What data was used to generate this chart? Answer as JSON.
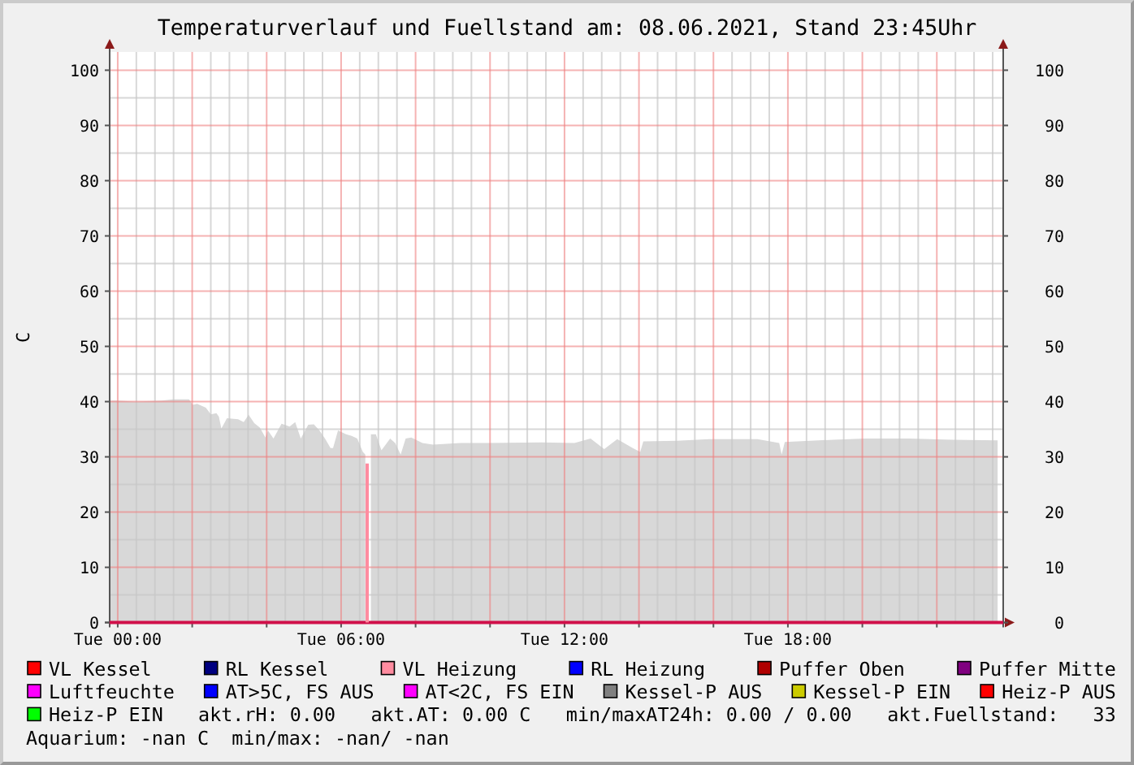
{
  "chart_data": {
    "type": "area",
    "title": "Temperaturverlauf und Fuellstand am: 08.06.2021, Stand 23:45Uhr",
    "ylabel": "C",
    "xlim": [
      "2021-06-07T23:47",
      "2021-06-08T23:47"
    ],
    "xticks": [
      {
        "value": "2021-06-08T00:00",
        "label": "Tue 00:00"
      },
      {
        "value": "2021-06-08T02:00",
        "label": null
      },
      {
        "value": "2021-06-08T04:00",
        "label": null
      },
      {
        "value": "2021-06-08T06:00",
        "label": "Tue 06:00"
      },
      {
        "value": "2021-06-08T08:00",
        "label": null
      },
      {
        "value": "2021-06-08T10:00",
        "label": null
      },
      {
        "value": "2021-06-08T12:00",
        "label": "Tue 12:00"
      },
      {
        "value": "2021-06-08T14:00",
        "label": null
      },
      {
        "value": "2021-06-08T16:00",
        "label": null
      },
      {
        "value": "2021-06-08T18:00",
        "label": "Tue 18:00"
      },
      {
        "value": "2021-06-08T20:00",
        "label": null
      },
      {
        "value": "2021-06-08T22:00",
        "label": null
      }
    ],
    "ylim": [
      0,
      103.3
    ],
    "yticks": [
      0,
      10,
      20,
      30,
      40,
      50,
      60,
      70,
      80,
      90,
      100
    ],
    "y2lim": [
      0,
      103.3
    ],
    "y2ticks": [
      0,
      10,
      20,
      30,
      40,
      50,
      60,
      70,
      80,
      90,
      100
    ],
    "grid": true,
    "legend": "bottom",
    "series": [
      {
        "color": "#d8d8d8",
        "x": [
          "2021-06-07T23:47",
          "2021-06-08T00:00",
          "2021-06-08T00:28",
          "2021-06-08T01:11",
          "2021-06-08T01:29",
          "2021-06-08T01:55",
          "2021-06-08T02:01",
          "2021-06-08T02:08",
          "2021-06-08T02:22",
          "2021-06-08T02:30",
          "2021-06-08T02:39",
          "2021-06-08T02:43",
          "2021-06-08T02:47",
          "2021-06-08T02:56",
          "2021-06-08T03:14",
          "2021-06-08T03:23",
          "2021-06-08T03:31",
          "2021-06-08T03:40",
          "2021-06-08T03:49",
          "2021-06-08T03:58",
          "2021-06-08T04:02",
          "2021-06-08T04:11",
          "2021-06-08T04:24",
          "2021-06-08T04:37",
          "2021-06-08T04:46",
          "2021-06-08T04:55",
          "2021-06-08T05:07",
          "2021-06-08T05:16",
          "2021-06-08T05:25",
          "2021-06-08T05:34",
          "2021-06-08T05:43",
          "2021-06-08T05:47",
          "2021-06-08T05:55",
          "2021-06-08T06:08",
          "2021-06-08T06:17",
          "2021-06-08T06:26",
          "2021-06-08T06:35",
          "2021-06-08T06:39",
          "2021-06-08T06:42",
          "2021-06-08T06:48",
          "2021-06-08T06:56",
          "2021-06-08T07:05",
          "2021-06-08T07:19",
          "2021-06-08T07:27",
          "2021-06-08T07:36",
          "2021-06-08T07:44",
          "2021-06-08T07:53",
          "2021-06-08T08:11",
          "2021-06-08T08:28",
          "2021-06-08T09:12",
          "2021-06-08T09:56",
          "2021-06-08T11:23",
          "2021-06-08T12:16",
          "2021-06-08T12:42",
          "2021-06-08T13:04",
          "2021-06-08T13:25",
          "2021-06-08T13:50",
          "2021-06-08T14:02",
          "2021-06-08T14:07",
          "2021-06-08T15:01",
          "2021-06-08T15:53",
          "2021-06-08T17:11",
          "2021-06-08T17:46",
          "2021-06-08T17:50",
          "2021-06-08T17:55",
          "2021-06-08T19:13",
          "2021-06-08T20:05",
          "2021-06-08T21:15",
          "2021-06-08T22:25",
          "2021-06-08T23:38"
        ],
        "values": [
          40.2,
          40.2,
          40,
          40.2,
          40.4,
          40.4,
          39.4,
          39.6,
          38.9,
          37.7,
          37.9,
          37.3,
          35.1,
          37,
          36.8,
          36.3,
          37.6,
          36.1,
          35.3,
          33.5,
          34.8,
          33.3,
          36,
          35.5,
          36.3,
          33.3,
          35.8,
          35.9,
          34.8,
          33.3,
          31.6,
          31.6,
          34.8,
          34.1,
          33.8,
          33.3,
          30.9,
          30.4,
          null,
          34.1,
          34.1,
          31.2,
          33.3,
          32.5,
          30.4,
          33.3,
          33.5,
          32.5,
          32.2,
          32.5,
          32.5,
          32.6,
          32.5,
          33.3,
          31.4,
          33.2,
          31.6,
          30.9,
          32.8,
          32.9,
          33.2,
          33.2,
          32.5,
          30.4,
          32.7,
          33.1,
          33.3,
          33.3,
          33.1,
          33.0
        ]
      },
      {
        "type": "line",
        "color": "#d0104a",
        "x": [
          "2021-06-07T23:47",
          "2021-06-08T23:47"
        ],
        "values": [
          0,
          0
        ]
      },
      {
        "type": "line",
        "name": "VL Kessel",
        "color": "#ff0000"
      },
      {
        "type": "line",
        "name": "RL Kessel",
        "color": "#000080"
      },
      {
        "type": "line",
        "name": "VL Heizung",
        "color": "#ff8ca0",
        "x": [
          "2021-06-08T06:42",
          "2021-06-08T06:42"
        ],
        "values": [
          0,
          28.8
        ]
      },
      {
        "type": "line",
        "name": "RL Heizung",
        "color": "#0000ff"
      },
      {
        "type": "line",
        "name": "Puffer Oben",
        "color": "#b00000"
      },
      {
        "type": "line",
        "name": "Puffer Mitte",
        "color": "#800080"
      },
      {
        "type": "line",
        "name": "Luftfeuchte",
        "color": "#ff00ff"
      },
      {
        "type": "line",
        "name": "AT>5C, FS AUS",
        "color": "#0000ff"
      },
      {
        "type": "line",
        "name": "AT<2C, FS EIN",
        "color": "#ff00ff"
      },
      {
        "type": "line",
        "name": "Kessel-P AUS",
        "color": "#808080"
      },
      {
        "type": "line",
        "name": "Kessel-P EIN",
        "color": "#cccc00"
      },
      {
        "type": "line",
        "name": "Heiz-P AUS",
        "color": "#ff0000"
      },
      {
        "type": "line",
        "name": "Heiz-P EIN",
        "color": "#00ff00"
      }
    ],
    "annotations": [
      "akt.rH: 0.00",
      "akt.AT: 0.00 C",
      "min/maxAT24h: 0.00 / 0.00",
      "akt.Fuellstand:   33",
      "Aquarium: -nan C  min/max: -nan/ -nan"
    ]
  }
}
